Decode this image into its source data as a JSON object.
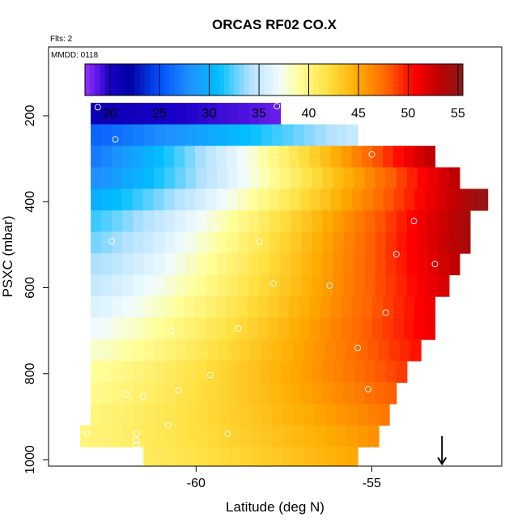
{
  "chart_data": {
    "type": "heatmap",
    "title": "ORCAS RF02 CO.X",
    "subtitle_flights": "Flts: 2",
    "subtitle_date": "MMDD: 0118",
    "xlabel": "Latitude (deg N)",
    "ylabel": "PSXC (mbar)",
    "xlim": [
      -64.2,
      -51.3
    ],
    "ylim": [
      1015,
      40
    ],
    "y_reversed": true,
    "x_ticks": [
      -60,
      -55
    ],
    "y_ticks": [
      200,
      400,
      600,
      800,
      1000
    ],
    "colorbar": {
      "range": [
        17.5,
        55.5
      ],
      "ticks": [
        20,
        25,
        30,
        35,
        40,
        45,
        50,
        55
      ],
      "stops": [
        {
          "v": 17.5,
          "c": "#9b30ff"
        },
        {
          "v": 20,
          "c": "#1800c8"
        },
        {
          "v": 22,
          "c": "#0000a0"
        },
        {
          "v": 25,
          "c": "#0050ff"
        },
        {
          "v": 28,
          "c": "#1e90ff"
        },
        {
          "v": 31,
          "c": "#00bfff"
        },
        {
          "v": 34,
          "c": "#b0e0ff"
        },
        {
          "v": 37,
          "c": "#f0fbff"
        },
        {
          "v": 39,
          "c": "#ffff99"
        },
        {
          "v": 42,
          "c": "#ffe040"
        },
        {
          "v": 45,
          "c": "#ffaa00"
        },
        {
          "v": 48,
          "c": "#ff6000"
        },
        {
          "v": 50.5,
          "c": "#ff0000"
        },
        {
          "v": 53,
          "c": "#c00000"
        },
        {
          "v": 55.5,
          "c": "#8b1a1a"
        }
      ]
    },
    "pressure_bins": [
      {
        "p0": 170,
        "p1": 220,
        "lat0": -63.0,
        "lat1": -57.6,
        "v0": 21,
        "v1": 18.5
      },
      {
        "p0": 220,
        "p1": 270,
        "lat0": -63.0,
        "lat1": -55.4,
        "v0": 26,
        "v1": 35
      },
      {
        "p0": 270,
        "p1": 320,
        "lat0": -63.0,
        "lat1": -53.2,
        "v0": 27,
        "v1": 53
      },
      {
        "p0": 320,
        "p1": 370,
        "lat0": -63.0,
        "lat1": -52.5,
        "v0": 28,
        "v1": 53
      },
      {
        "p0": 370,
        "p1": 420,
        "lat0": -63.0,
        "lat1": -51.7,
        "v0": 30,
        "v1": 55
      },
      {
        "p0": 420,
        "p1": 470,
        "lat0": -63.0,
        "lat1": -52.2,
        "v0": 32,
        "v1": 54
      },
      {
        "p0": 470,
        "p1": 520,
        "lat0": -63.0,
        "lat1": -52.2,
        "v0": 33,
        "v1": 54
      },
      {
        "p0": 520,
        "p1": 570,
        "lat0": -63.0,
        "lat1": -52.5,
        "v0": 34,
        "v1": 53
      },
      {
        "p0": 570,
        "p1": 620,
        "lat0": -63.0,
        "lat1": -52.8,
        "v0": 35,
        "v1": 52
      },
      {
        "p0": 620,
        "p1": 670,
        "lat0": -63.0,
        "lat1": -53.2,
        "v0": 36,
        "v1": 51
      },
      {
        "p0": 670,
        "p1": 720,
        "lat0": -63.0,
        "lat1": -53.2,
        "v0": 37,
        "v1": 51
      },
      {
        "p0": 720,
        "p1": 770,
        "lat0": -63.0,
        "lat1": -53.6,
        "v0": 38,
        "v1": 50
      },
      {
        "p0": 770,
        "p1": 820,
        "lat0": -63.0,
        "lat1": -54.0,
        "v0": 39,
        "v1": 49
      },
      {
        "p0": 820,
        "p1": 870,
        "lat0": -63.0,
        "lat1": -54.3,
        "v0": 39.5,
        "v1": 48
      },
      {
        "p0": 870,
        "p1": 920,
        "lat0": -63.0,
        "lat1": -54.5,
        "v0": 40,
        "v1": 47
      },
      {
        "p0": 920,
        "p1": 970,
        "lat0": -63.3,
        "lat1": -54.8,
        "v0": 40,
        "v1": 46
      },
      {
        "p0": 970,
        "p1": 1015,
        "lat0": -61.5,
        "lat1": -55.4,
        "v0": 41,
        "v1": 45
      }
    ],
    "observations": [
      {
        "lat": -62.8,
        "p": 180
      },
      {
        "lat": -57.7,
        "p": 178
      },
      {
        "lat": -62.3,
        "p": 255
      },
      {
        "lat": -55.0,
        "p": 290
      },
      {
        "lat": -52.9,
        "p": 305
      },
      {
        "lat": -51.5,
        "p": 378
      },
      {
        "lat": -53.8,
        "p": 445
      },
      {
        "lat": -59.4,
        "p": 462
      },
      {
        "lat": -58.2,
        "p": 493
      },
      {
        "lat": -62.4,
        "p": 492
      },
      {
        "lat": -54.3,
        "p": 522
      },
      {
        "lat": -53.2,
        "p": 545
      },
      {
        "lat": -61.0,
        "p": 588
      },
      {
        "lat": -57.8,
        "p": 590
      },
      {
        "lat": -56.2,
        "p": 595
      },
      {
        "lat": -54.6,
        "p": 658
      },
      {
        "lat": -58.8,
        "p": 695
      },
      {
        "lat": -60.7,
        "p": 700
      },
      {
        "lat": -55.4,
        "p": 740
      },
      {
        "lat": -59.6,
        "p": 803
      },
      {
        "lat": -55.1,
        "p": 836
      },
      {
        "lat": -60.5,
        "p": 838
      },
      {
        "lat": -62.0,
        "p": 848
      },
      {
        "lat": -61.5,
        "p": 853
      },
      {
        "lat": -60.8,
        "p": 920
      },
      {
        "lat": -61.7,
        "p": 940
      },
      {
        "lat": -59.1,
        "p": 940
      },
      {
        "lat": -63.1,
        "p": 938
      },
      {
        "lat": -61.7,
        "p": 955
      },
      {
        "lat": -61.7,
        "p": 965
      },
      {
        "lat": -55.0,
        "p": 978
      }
    ],
    "arrow": {
      "lat": -53.0,
      "p_top": 945,
      "p_bottom": 1010
    }
  }
}
